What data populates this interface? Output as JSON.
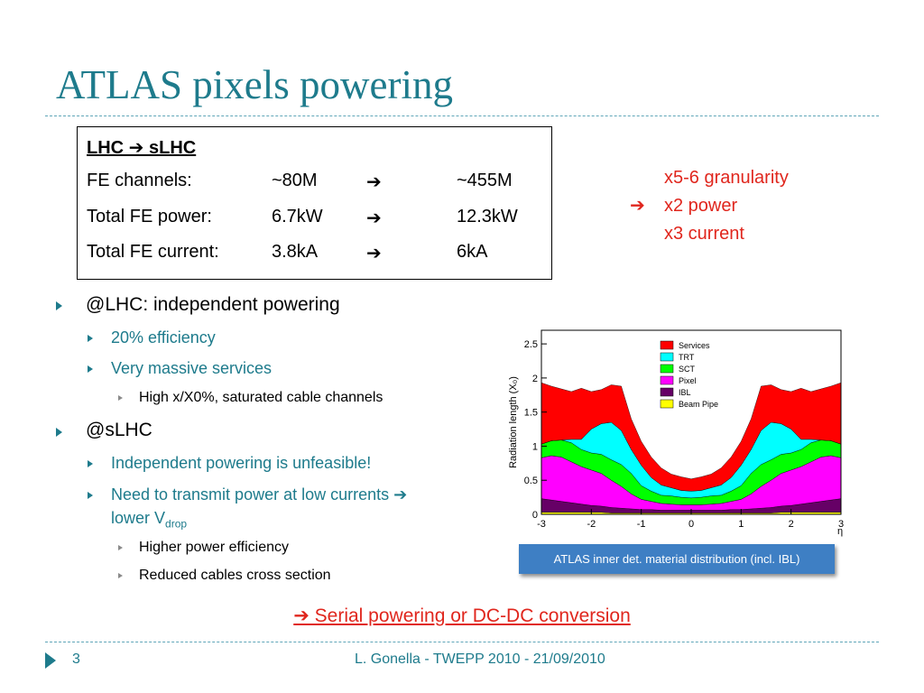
{
  "slide": {
    "title": "ATLAS pixels powering",
    "comparison_box": {
      "heading": "LHC ➔ sLHC",
      "rows": [
        {
          "label": "FE channels:",
          "lhc": "~80M",
          "arrow": "➔",
          "slhc": "~455M"
        },
        {
          "label": "Total FE power:",
          "lhc": "6.7kW",
          "arrow": "➔",
          "slhc": "12.3kW"
        },
        {
          "label": "Total FE current:",
          "lhc": "3.8kA",
          "arrow": "➔",
          "slhc": "6kA"
        }
      ]
    },
    "side_note": {
      "arrow": "➔",
      "lines": [
        "x5-6 granularity",
        "x2 power",
        "x3 current"
      ]
    },
    "bullets": {
      "lhc": {
        "text": "@LHC: independent powering",
        "sub": [
          "20% efficiency",
          "Very massive services"
        ],
        "subsub": [
          "High x/X0%, saturated cable channels"
        ]
      },
      "slhc": {
        "text": "@sLHC",
        "sub1": "Independent powering is unfeasible!",
        "sub2_line1": "Need to transmit power at low currents ➔",
        "sub2_line2_prefix": "lower V",
        "sub2_subscript": "drop",
        "subsub": [
          "Higher power efficiency",
          "Reduced cables cross section"
        ]
      }
    },
    "figure_caption": "ATLAS inner det. material distribution (incl. IBL)",
    "conclusion": "➔ Serial powering or DC-DC conversion",
    "footer": {
      "page_number": "3",
      "text": "L. Gonella - TWEPP 2010 - 21/09/2010"
    }
  },
  "chart_data": {
    "type": "area",
    "ylabel": "Radiation length (X₀)",
    "xlabel": "η",
    "x_ticks": [
      "-3",
      "-2",
      "-1",
      "0",
      "1",
      "2",
      "3"
    ],
    "y_ticks": [
      "0",
      "0.5",
      "1",
      "1.5",
      "2",
      "2.5"
    ],
    "xlim": [
      -3,
      3
    ],
    "ylim": [
      0,
      2.7
    ],
    "legend_position": "top-center",
    "x": [
      -3.0,
      -2.8,
      -2.6,
      -2.4,
      -2.2,
      -2.0,
      -1.8,
      -1.6,
      -1.4,
      -1.2,
      -1.0,
      -0.8,
      -0.6,
      -0.4,
      -0.2,
      0.0,
      0.2,
      0.4,
      0.6,
      0.8,
      1.0,
      1.2,
      1.4,
      1.6,
      1.8,
      2.0,
      2.2,
      2.4,
      2.6,
      2.8,
      3.0
    ],
    "series": [
      {
        "name": "Beam Pipe",
        "color": "#ffff00",
        "values": [
          0.03,
          0.03,
          0.03,
          0.03,
          0.03,
          0.03,
          0.03,
          0.02,
          0.02,
          0.02,
          0.02,
          0.02,
          0.02,
          0.02,
          0.02,
          0.02,
          0.02,
          0.02,
          0.02,
          0.02,
          0.02,
          0.02,
          0.02,
          0.02,
          0.03,
          0.03,
          0.03,
          0.03,
          0.03,
          0.03,
          0.03
        ]
      },
      {
        "name": "IBL",
        "color": "#660066",
        "values": [
          0.2,
          0.18,
          0.16,
          0.14,
          0.12,
          0.1,
          0.09,
          0.08,
          0.07,
          0.06,
          0.05,
          0.05,
          0.04,
          0.04,
          0.04,
          0.04,
          0.04,
          0.04,
          0.04,
          0.05,
          0.05,
          0.06,
          0.07,
          0.08,
          0.09,
          0.1,
          0.12,
          0.14,
          0.16,
          0.18,
          0.2
        ]
      },
      {
        "name": "Pixel",
        "color": "#ff00ff",
        "values": [
          0.6,
          0.65,
          0.65,
          0.6,
          0.55,
          0.52,
          0.48,
          0.4,
          0.32,
          0.22,
          0.15,
          0.12,
          0.1,
          0.09,
          0.08,
          0.08,
          0.08,
          0.09,
          0.1,
          0.12,
          0.15,
          0.22,
          0.32,
          0.4,
          0.48,
          0.52,
          0.55,
          0.6,
          0.65,
          0.65,
          0.6
        ]
      },
      {
        "name": "SCT",
        "color": "#00ff00",
        "values": [
          0.2,
          0.22,
          0.25,
          0.28,
          0.25,
          0.25,
          0.28,
          0.3,
          0.32,
          0.3,
          0.2,
          0.15,
          0.12,
          0.12,
          0.11,
          0.1,
          0.11,
          0.12,
          0.12,
          0.15,
          0.2,
          0.3,
          0.32,
          0.3,
          0.28,
          0.25,
          0.25,
          0.28,
          0.25,
          0.22,
          0.2
        ]
      },
      {
        "name": "TRT",
        "color": "#00ffff",
        "values": [
          0.0,
          0.0,
          0.0,
          0.05,
          0.15,
          0.35,
          0.45,
          0.55,
          0.5,
          0.35,
          0.3,
          0.2,
          0.15,
          0.12,
          0.1,
          0.1,
          0.1,
          0.12,
          0.15,
          0.2,
          0.3,
          0.35,
          0.5,
          0.55,
          0.45,
          0.35,
          0.15,
          0.05,
          0.0,
          0.0,
          0.0
        ]
      },
      {
        "name": "Services",
        "color": "#ff0000",
        "values": [
          0.9,
          0.8,
          0.75,
          0.7,
          0.75,
          0.55,
          0.5,
          0.55,
          0.65,
          0.45,
          0.35,
          0.3,
          0.25,
          0.2,
          0.2,
          0.18,
          0.2,
          0.2,
          0.25,
          0.3,
          0.35,
          0.45,
          0.65,
          0.55,
          0.5,
          0.55,
          0.75,
          0.7,
          0.75,
          0.8,
          0.9
        ]
      }
    ]
  }
}
